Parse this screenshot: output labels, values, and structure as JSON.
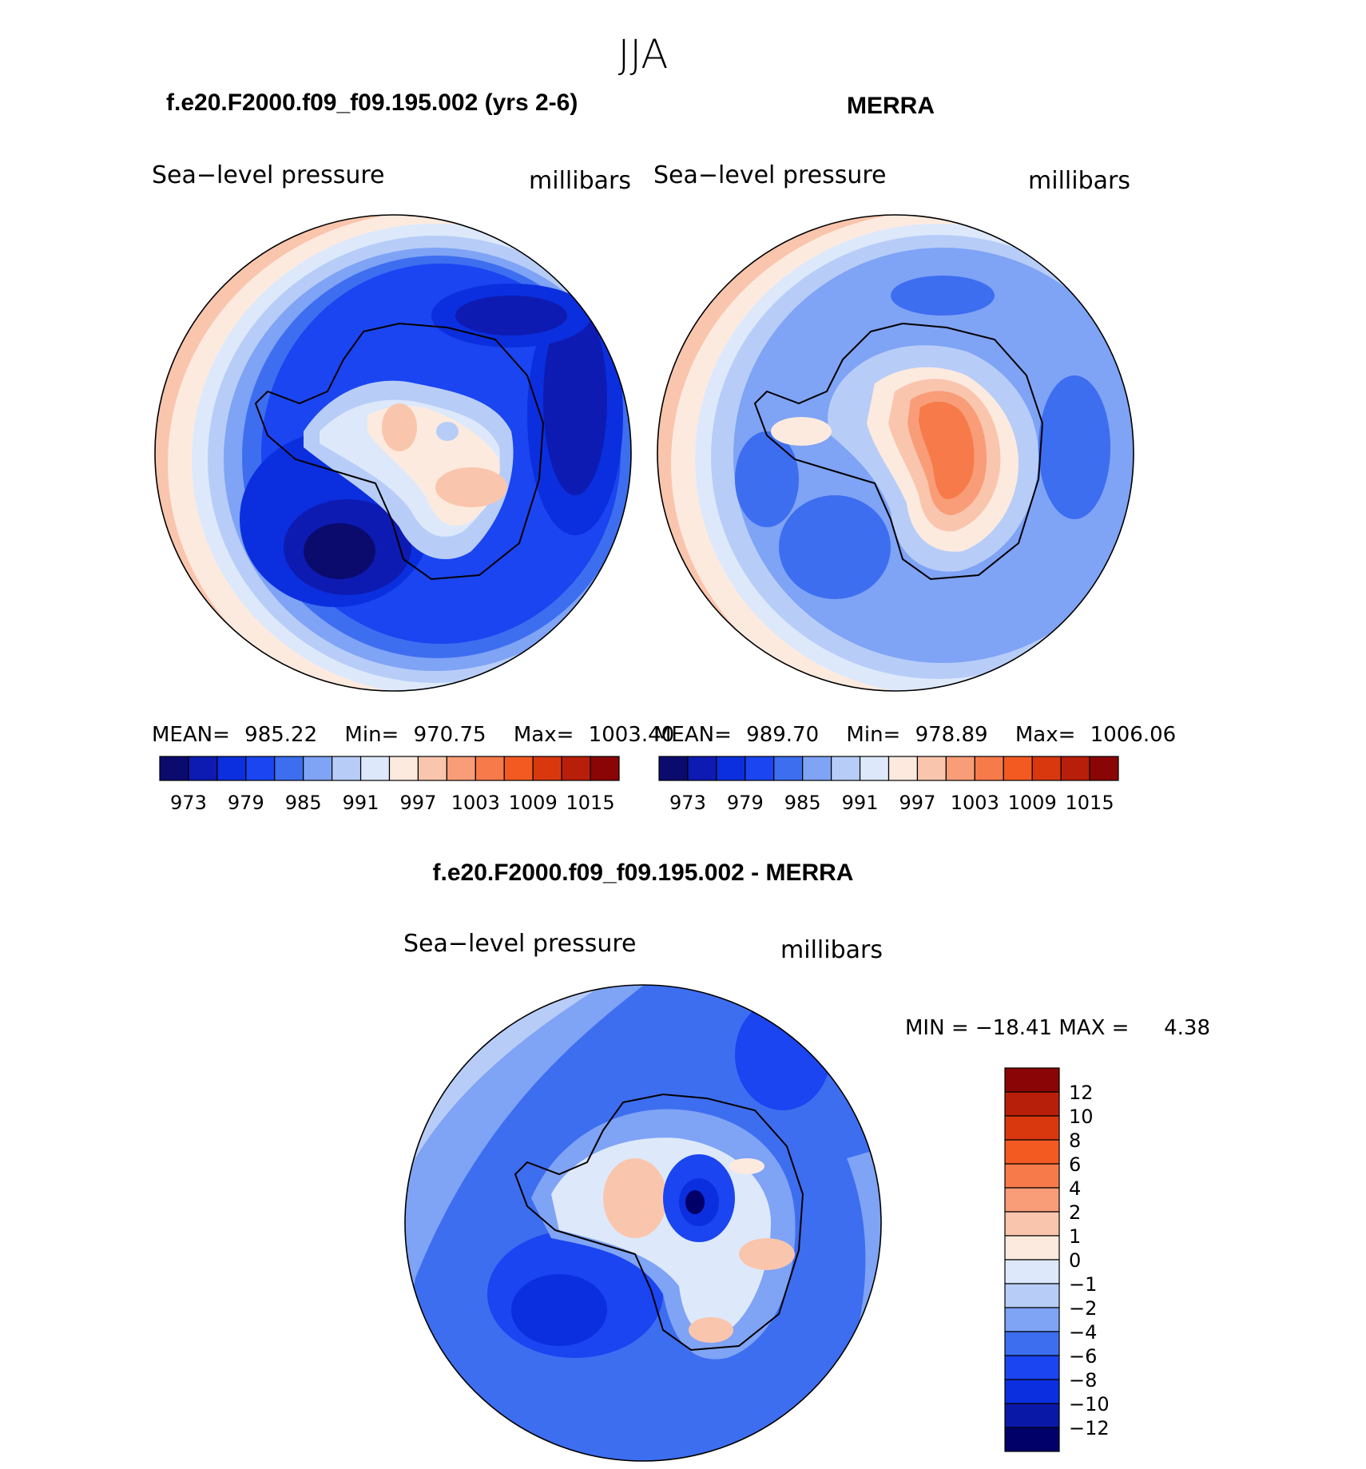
{
  "chart_data": {
    "type": "polar-contour-map",
    "suptitle": "JJA",
    "panels": [
      {
        "id": "model",
        "title": "f.e20.F2000.f09_f09.195.002 (yrs 2-6)",
        "variable": "Sea−level pressure",
        "units": "millibars",
        "stats": {
          "mean_label": "MEAN=",
          "mean": "985.22",
          "min_label": "Min=",
          "min": "970.75",
          "max_label": "Max=",
          "max": "1003.40"
        },
        "colorbar_ticks": [
          "973",
          "979",
          "985",
          "991",
          "997",
          "1003",
          "1009",
          "1015"
        ]
      },
      {
        "id": "obs",
        "title": "MERRA",
        "variable": "Sea−level pressure",
        "units": "millibars",
        "stats": {
          "mean_label": "MEAN=",
          "mean": "989.70",
          "min_label": "Min=",
          "min": "978.89",
          "max_label": "Max=",
          "max": "1006.06"
        },
        "colorbar_ticks": [
          "973",
          "979",
          "985",
          "991",
          "997",
          "1003",
          "1009",
          "1015"
        ]
      },
      {
        "id": "diff",
        "title": "f.e20.F2000.f09_f09.195.002 - MERRA",
        "variable": "Sea−level pressure",
        "units": "millibars",
        "stats_text": "MIN = −18.41 MAX =",
        "stats_max": "4.38",
        "colorbar_ticks": [
          "12",
          "10",
          "8",
          "6",
          "4",
          "2",
          "1",
          "0",
          "−1",
          "−2",
          "−4",
          "−6",
          "−8",
          "−10",
          "−12"
        ]
      }
    ],
    "colors_abs": [
      "#0b0b6e",
      "#0d1bb2",
      "#0b2fdf",
      "#1a45f0",
      "#3d6ef0",
      "#7fa3f5",
      "#b7cdf8",
      "#dde9fb",
      "#fdeadf",
      "#fac5ad",
      "#f89d78",
      "#f77a4a",
      "#f25a22",
      "#d9380f",
      "#b81f0a",
      "#8a0606"
    ],
    "colors_diff": [
      "#000068",
      "#0a18a8",
      "#0b2fdf",
      "#1a45f0",
      "#3d6ef0",
      "#7fa3f5",
      "#b7cdf8",
      "#dde9fb",
      "#fdeadf",
      "#fac5ad",
      "#f89d78",
      "#f77a4a",
      "#f25a22",
      "#d9380f",
      "#b81f0a",
      "#8a0606"
    ]
  }
}
